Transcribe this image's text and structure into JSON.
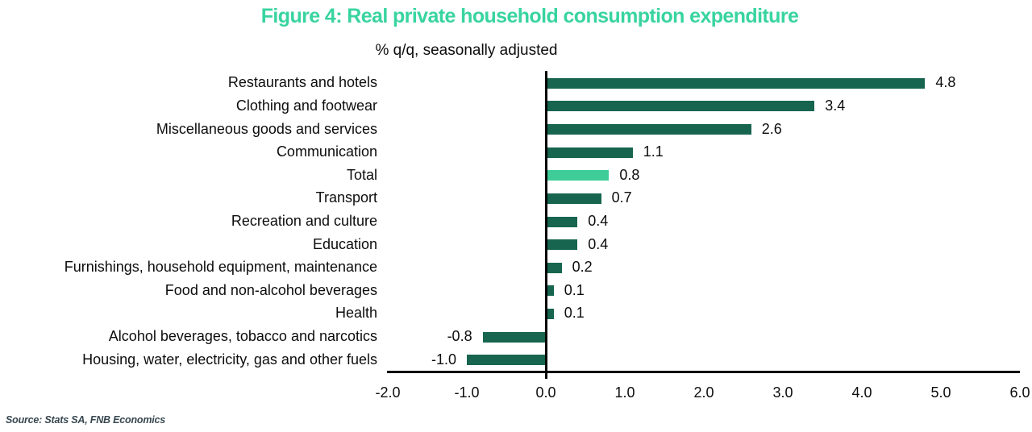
{
  "title": "Figure 4: Real private household consumption expenditure",
  "subtitle": "% q/q, seasonally adjusted",
  "source": "Source: Stats SA, FNB Economics",
  "colors": {
    "title_accent": "#38d4a0",
    "bar": "#17654f",
    "highlight_bar": "#3ecd98",
    "axis": "#000000",
    "source_text": "#37474f"
  },
  "chart_data": {
    "type": "bar",
    "orientation": "horizontal",
    "title": "Figure 4: Real private household consumption expenditure",
    "subtitle": "% q/q, seasonally adjusted",
    "categories": [
      "Restaurants and hotels",
      "Clothing and footwear",
      "Miscellaneous goods and services",
      "Communication",
      "Total",
      "Transport",
      "Recreation and culture",
      "Education",
      "Furnishings, household equipment, maintenance",
      "Food and non-alcohol beverages",
      "Health",
      "Alcohol beverages, tobacco and narcotics",
      "Housing, water, electricity, gas and other fuels"
    ],
    "values": [
      4.8,
      3.4,
      2.6,
      1.1,
      0.8,
      0.7,
      0.4,
      0.4,
      0.2,
      0.1,
      0.1,
      -0.8,
      -1.0
    ],
    "value_labels": [
      "4.8",
      "3.4",
      "2.6",
      "1.1",
      "0.8",
      "0.7",
      "0.4",
      "0.4",
      "0.2",
      "0.1",
      "0.1",
      "-0.8",
      "-1.0"
    ],
    "highlight_category": "Total",
    "xlim": [
      -2.0,
      6.0
    ],
    "x_ticks": [
      "-2.0",
      "-1.0",
      "0.0",
      "1.0",
      "2.0",
      "3.0",
      "4.0",
      "5.0",
      "6.0"
    ],
    "grid": false,
    "legend": false,
    "data_labels": true
  }
}
